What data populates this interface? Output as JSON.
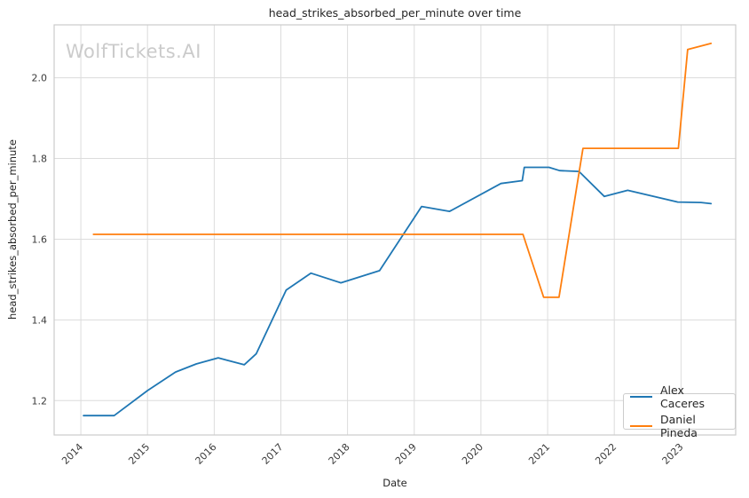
{
  "watermark": "WolfTickets.AI",
  "legend": {
    "items": [
      {
        "label": "Alex Caceres",
        "color": "#1f77b4"
      },
      {
        "label": "Daniel Pineda",
        "color": "#ff7f0e"
      }
    ]
  },
  "chart_data": {
    "type": "line",
    "title": "head_strikes_absorbed_per_minute over time",
    "xlabel": "Date",
    "ylabel": "head_strikes_absorbed_per_minute",
    "xlim": [
      2013.6,
      2023.82
    ],
    "ylim": [
      1.115,
      2.131
    ],
    "grid": true,
    "legend_position": "lower right",
    "x_ticks": [
      {
        "value": 2014,
        "label": "2014"
      },
      {
        "value": 2015,
        "label": "2015"
      },
      {
        "value": 2016,
        "label": "2016"
      },
      {
        "value": 2017,
        "label": "2017"
      },
      {
        "value": 2018,
        "label": "2018"
      },
      {
        "value": 2019,
        "label": "2019"
      },
      {
        "value": 2020,
        "label": "2020"
      },
      {
        "value": 2021,
        "label": "2021"
      },
      {
        "value": 2022,
        "label": "2022"
      },
      {
        "value": 2023,
        "label": "2023"
      }
    ],
    "y_ticks": [
      {
        "value": 1.2,
        "label": "1.2"
      },
      {
        "value": 1.4,
        "label": "1.4"
      },
      {
        "value": 1.6,
        "label": "1.6"
      },
      {
        "value": 1.8,
        "label": "1.8"
      },
      {
        "value": 2.0,
        "label": "2.0"
      }
    ],
    "series": [
      {
        "name": "Alex Caceres",
        "color": "#1f77b4",
        "points": [
          [
            2014.04,
            1.163
          ],
          [
            2014.5,
            1.163
          ],
          [
            2015.0,
            1.225
          ],
          [
            2015.42,
            1.271
          ],
          [
            2015.73,
            1.291
          ],
          [
            2016.06,
            1.306
          ],
          [
            2016.45,
            1.289
          ],
          [
            2016.63,
            1.316
          ],
          [
            2017.08,
            1.474
          ],
          [
            2017.45,
            1.516
          ],
          [
            2017.9,
            1.492
          ],
          [
            2018.48,
            1.522
          ],
          [
            2019.11,
            1.681
          ],
          [
            2019.53,
            1.669
          ],
          [
            2020.3,
            1.738
          ],
          [
            2020.62,
            1.745
          ],
          [
            2020.65,
            1.778
          ],
          [
            2021.02,
            1.778
          ],
          [
            2021.18,
            1.77
          ],
          [
            2021.47,
            1.768
          ],
          [
            2021.85,
            1.706
          ],
          [
            2022.2,
            1.721
          ],
          [
            2022.95,
            1.692
          ],
          [
            2023.3,
            1.691
          ],
          [
            2023.45,
            1.688
          ]
        ]
      },
      {
        "name": "Daniel Pineda",
        "color": "#ff7f0e",
        "points": [
          [
            2014.19,
            1.612
          ],
          [
            2020.63,
            1.612
          ],
          [
            2020.94,
            1.456
          ],
          [
            2021.17,
            1.456
          ],
          [
            2021.53,
            1.825
          ],
          [
            2022.96,
            1.825
          ],
          [
            2023.1,
            2.07
          ],
          [
            2023.45,
            2.085
          ]
        ]
      }
    ]
  }
}
